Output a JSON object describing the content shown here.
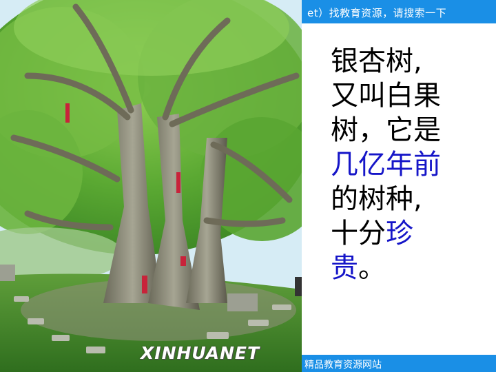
{
  "header": {
    "banner_text": "et）找教育资源，请搜索一下"
  },
  "footer": {
    "banner_text": "精品教育资源网站"
  },
  "photo": {
    "watermark": "XINHUANET"
  },
  "slide": {
    "line1": "银杏树,",
    "line2": "又叫白果",
    "line3": "树，它是",
    "line4": "几亿年前",
    "line5": "的树种,",
    "line6_plain": "十分",
    "line6_highlight": "珍",
    "line7_highlight": "贵",
    "line7_plain": "。"
  },
  "colors": {
    "banner": "#1a8fe6",
    "highlight": "#1515c8"
  }
}
